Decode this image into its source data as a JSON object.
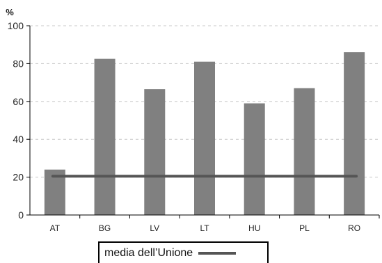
{
  "chart_data": {
    "type": "bar",
    "categories": [
      "AT",
      "BG",
      "LV",
      "LT",
      "HU",
      "PL",
      "RO"
    ],
    "values": [
      24,
      82.5,
      66.5,
      81,
      59,
      67,
      86
    ],
    "ylabel": "%",
    "ylim": [
      0,
      100
    ],
    "yticks": [
      0,
      20,
      40,
      60,
      80,
      100
    ],
    "grid": true,
    "bar_color": "#808080",
    "reference_line": {
      "name": "media dell’Unione",
      "value": 20.5,
      "color": "#555555"
    },
    "legend_position": "bottom-center"
  }
}
